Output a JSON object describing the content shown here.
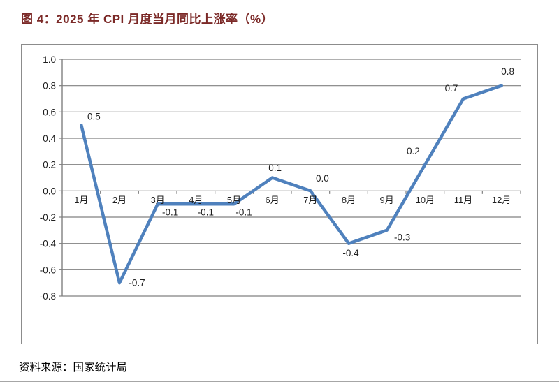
{
  "page": {
    "title": "图 4：2025 年 CPI 月度当月同比上涨率（%）",
    "source_note": "资料来源：国家统计局"
  },
  "colors": {
    "title_text": "#7B2927",
    "series_line": "#4F81BD",
    "gridline": "#808080",
    "axis_line": "#808080",
    "chart_border": "#8C8C8C",
    "label_text": "#1F1F1F"
  },
  "chart_data": {
    "type": "line",
    "title": "图 4：2025 年 CPI 月度当月同比上涨率（%）",
    "categories": [
      "1月",
      "2月",
      "3月",
      "4月",
      "5月",
      "6月",
      "7月",
      "8月",
      "9月",
      "10月",
      "11月",
      "12月"
    ],
    "values": [
      0.5,
      -0.7,
      -0.1,
      -0.1,
      -0.1,
      0.1,
      0.0,
      -0.4,
      -0.3,
      0.2,
      0.7,
      0.8
    ],
    "data_labels": [
      "0.5",
      "-0.7",
      "-0.1",
      "-0.1",
      "-0.1",
      "0.1",
      "0.0",
      "-0.4",
      "-0.3",
      "0.2",
      "0.7",
      "0.8"
    ],
    "xlabel": "",
    "ylabel": "",
    "ylim": [
      -0.8,
      1.0
    ],
    "ytick_step": 0.2,
    "ytick_labels": [
      "1.0",
      "0.8",
      "0.6",
      "0.4",
      "0.2",
      "0.0",
      "-0.2",
      "-0.4",
      "-0.6",
      "-0.8"
    ],
    "grid": true,
    "legend": "none"
  }
}
